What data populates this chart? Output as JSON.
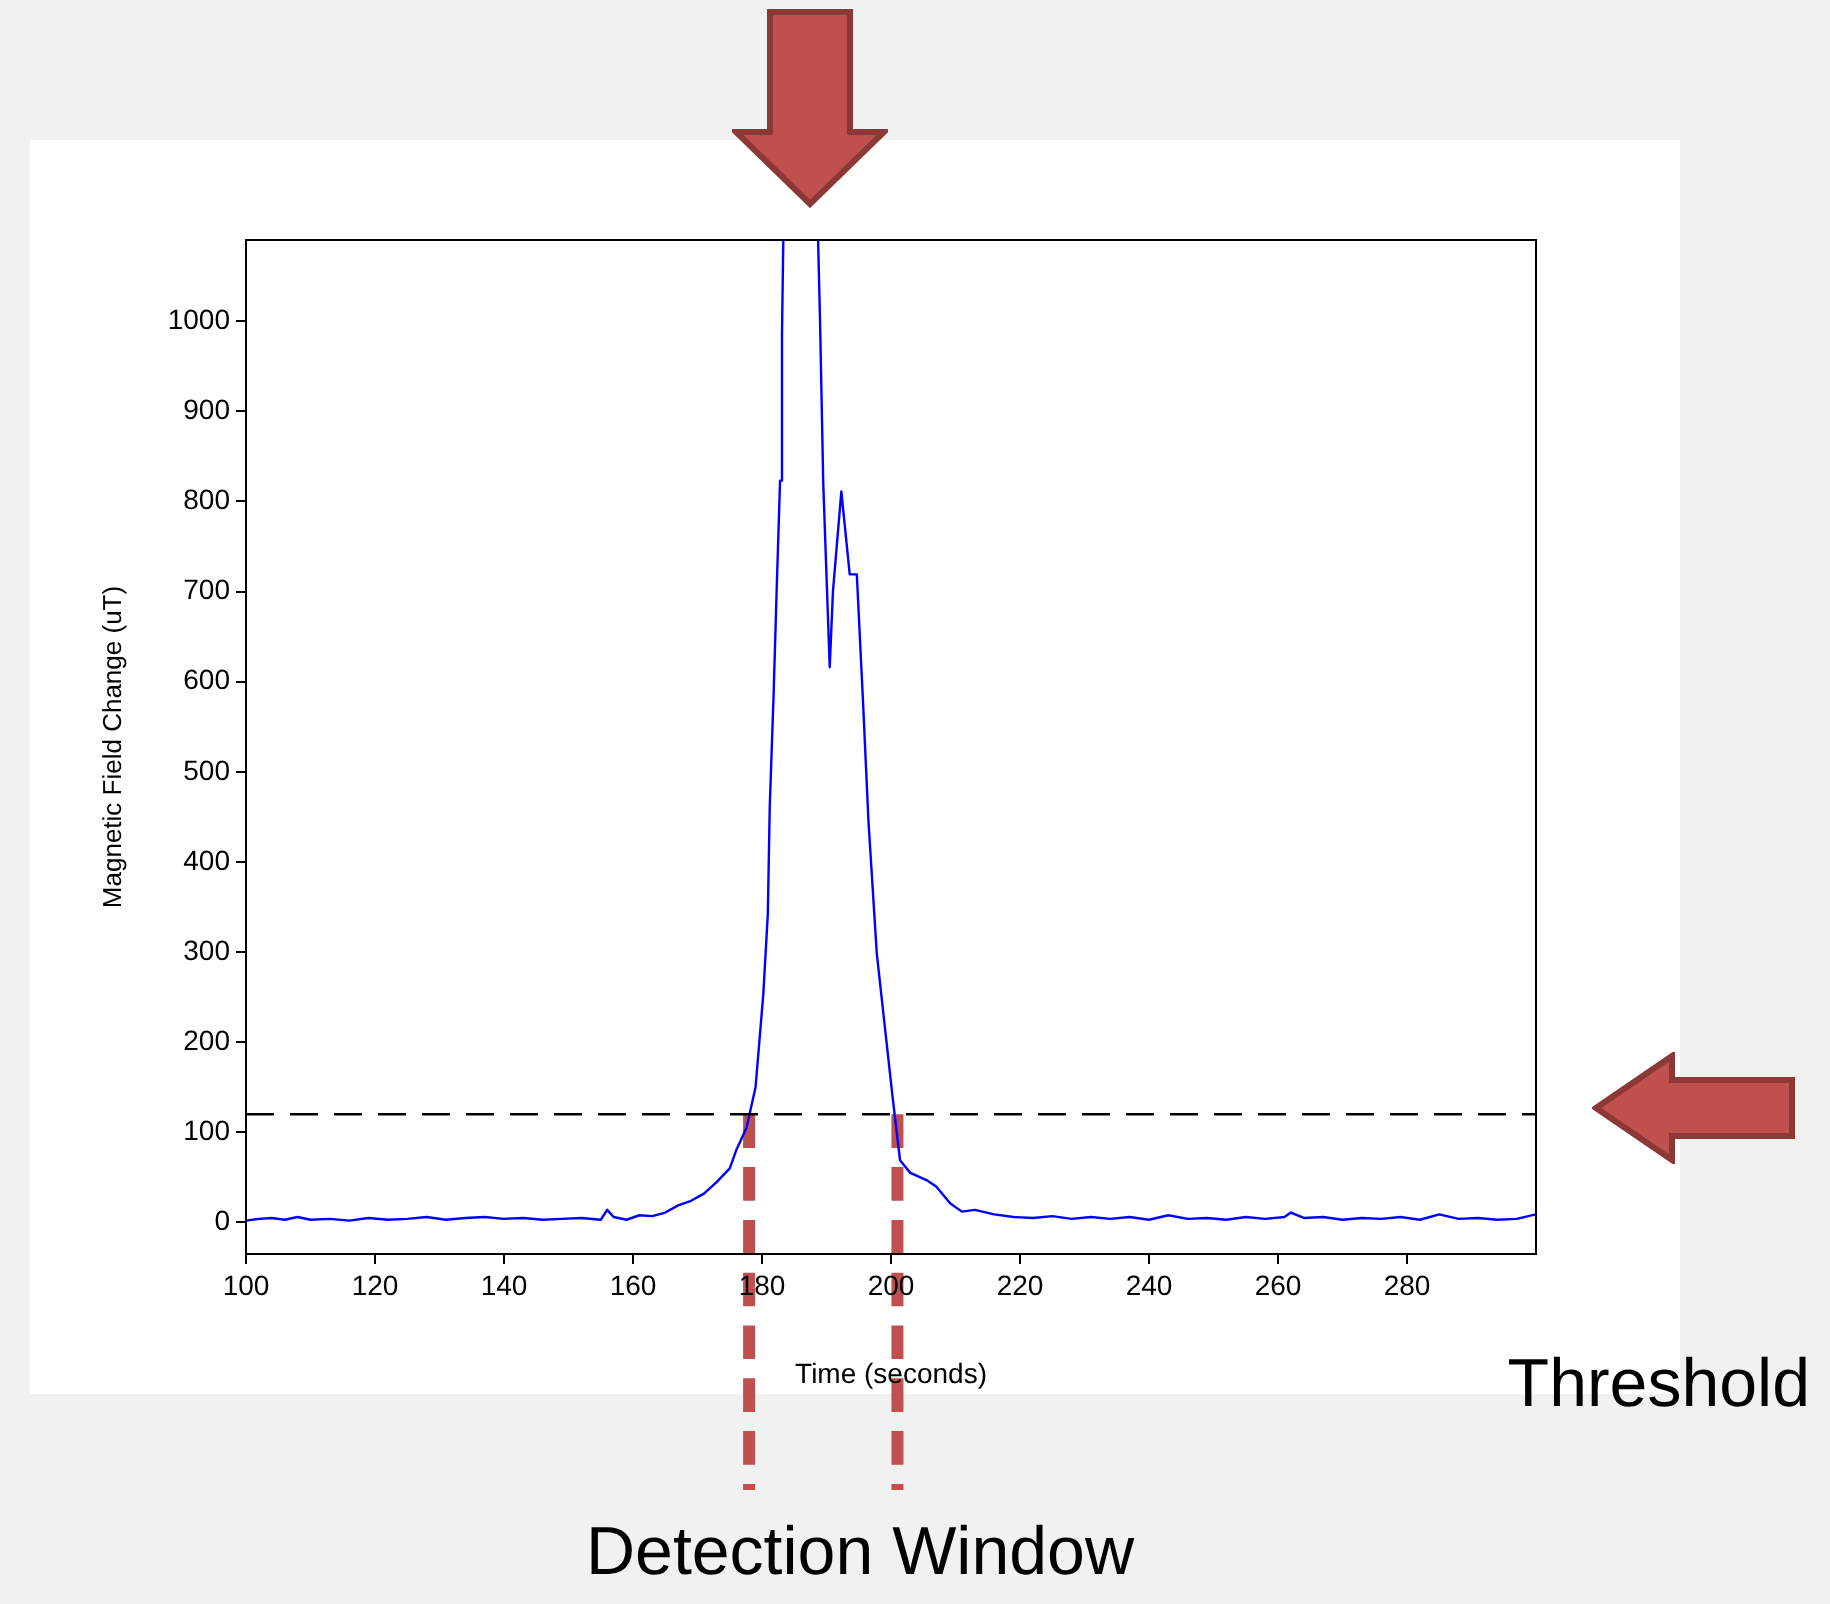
{
  "chart_data": {
    "type": "line",
    "xlabel": "Time (seconds)",
    "ylabel": "Magnetic Field Change (uT)",
    "series": [
      {
        "color": "#0000ff",
        "x": [
          100,
          102,
          104,
          106,
          108,
          110,
          113,
          116,
          119,
          122,
          125,
          128,
          131,
          134,
          137,
          140,
          143,
          146,
          149,
          152,
          155,
          156,
          157,
          159,
          161,
          163,
          165,
          167,
          169,
          171,
          173,
          175,
          176,
          177.6,
          179,
          180.2,
          180.9,
          181.2,
          181.8,
          182.3,
          182.8,
          183.1,
          183.3,
          186,
          188.7,
          189,
          189.5,
          190.5,
          191,
          192.3,
          193.6,
          194.7,
          195.7,
          196.5,
          197.8,
          200.2,
          201.4,
          203,
          205.5,
          207,
          209.2,
          211,
          213,
          216,
          219,
          222,
          225,
          228,
          231,
          234,
          237,
          240,
          243,
          246,
          249,
          252,
          255,
          258,
          261,
          262,
          264,
          267,
          270,
          273,
          276,
          279,
          282,
          285,
          288,
          291,
          294,
          297,
          300
        ],
        "values": [
          2,
          4,
          5,
          3,
          6,
          3,
          4,
          2,
          5,
          3,
          4,
          6,
          3,
          5,
          6,
          4,
          5,
          3,
          4,
          5,
          3,
          14,
          6,
          3,
          8,
          7,
          11,
          19,
          24,
          32,
          45,
          60,
          80,
          105,
          150,
          253,
          342,
          461,
          586,
          708,
          823,
          985,
          1089,
          null,
          1089,
          1000,
          819,
          616,
          700,
          811,
          719,
          719,
          572,
          446,
          298,
          142,
          69,
          55,
          47,
          40,
          21,
          12,
          14,
          9,
          6,
          5,
          7,
          4,
          6,
          4,
          6,
          3,
          8,
          4,
          5,
          3,
          6,
          4,
          6,
          11,
          5,
          6,
          3,
          5,
          4,
          6,
          3,
          9,
          4,
          5,
          3,
          4,
          9
        ]
      }
    ],
    "xlim": [
      100,
      300
    ],
    "xticks": [
      100,
      120,
      140,
      160,
      180,
      200,
      220,
      240,
      260,
      280
    ],
    "ylim": [
      -35,
      1090
    ],
    "yticks": [
      0,
      100,
      200,
      300,
      400,
      500,
      600,
      700,
      800,
      900,
      1000
    ],
    "grid": false,
    "legend": false,
    "marker": "none",
    "line_style": "solid",
    "ref_lines": [
      {
        "axis": "y",
        "value": 120,
        "label": "Threshold",
        "color": "#000000",
        "line_style": "dashed"
      },
      {
        "axis": "x",
        "value": 178,
        "color": "#c0504d",
        "line_style": "dashed"
      },
      {
        "axis": "x",
        "value": 201,
        "color": "#c0504d",
        "line_style": "dashed"
      }
    ],
    "annotations": [
      "Detection Window"
    ]
  }
}
